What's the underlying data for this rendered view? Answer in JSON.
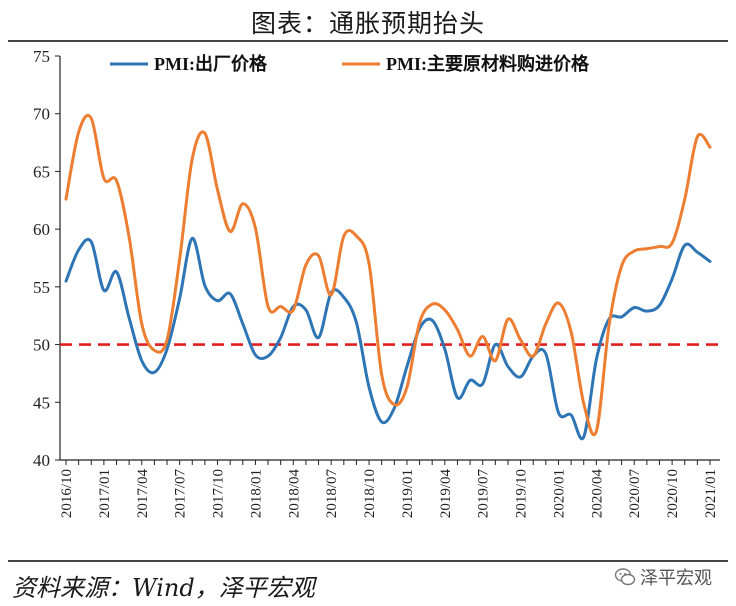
{
  "title": "图表：通胀预期抬头",
  "source": "资料来源：Wind，泽平宏观",
  "watermark": "泽平宏观",
  "chart_data": {
    "type": "line",
    "x": [
      "2016/10",
      "2016/11",
      "2016/12",
      "2017/01",
      "2017/02",
      "2017/03",
      "2017/04",
      "2017/05",
      "2017/06",
      "2017/07",
      "2017/08",
      "2017/09",
      "2017/10",
      "2017/11",
      "2017/12",
      "2018/01",
      "2018/02",
      "2018/03",
      "2018/04",
      "2018/05",
      "2018/06",
      "2018/07",
      "2018/08",
      "2018/09",
      "2018/10",
      "2018/11",
      "2018/12",
      "2019/01",
      "2019/02",
      "2019/03",
      "2019/04",
      "2019/05",
      "2019/06",
      "2019/07",
      "2019/08",
      "2019/09",
      "2019/10",
      "2019/11",
      "2019/12",
      "2020/01",
      "2020/02",
      "2020/03",
      "2020/04",
      "2020/05",
      "2020/06",
      "2020/07",
      "2020/08",
      "2020/09",
      "2020/10",
      "2020/11",
      "2020/12",
      "2021/01"
    ],
    "x_ticks": [
      "2016/10",
      "2017/01",
      "2017/04",
      "2017/07",
      "2017/10",
      "2018/01",
      "2018/04",
      "2018/07",
      "2018/10",
      "2019/01",
      "2019/04",
      "2019/07",
      "2019/10",
      "2020/01",
      "2020/04",
      "2020/07",
      "2020/10",
      "2021/01"
    ],
    "ylim": [
      40,
      75
    ],
    "y_ticks": [
      40,
      45,
      50,
      55,
      60,
      65,
      70,
      75
    ],
    "series": [
      {
        "name": "PMI:出厂价格",
        "color": "#2e75b6",
        "values": [
          55.5,
          58.2,
          58.9,
          54.7,
          56.3,
          52.3,
          48.6,
          47.6,
          49.6,
          54.0,
          59.2,
          55.1,
          53.8,
          54.4,
          51.8,
          49.1,
          49.0,
          50.6,
          53.3,
          53.0,
          50.6,
          54.5,
          54.1,
          51.9,
          46.3,
          43.3,
          44.5,
          48.1,
          51.4,
          52.1,
          49.6,
          45.4,
          46.9,
          46.6,
          50.0,
          48.1,
          47.2,
          49.0,
          49.2,
          44.1,
          43.9,
          42.0,
          48.7,
          52.2,
          52.4,
          53.2,
          52.9,
          53.4,
          55.7,
          58.6,
          58.0,
          57.2
        ]
      },
      {
        "name": "PMI:主要原材料购进价格",
        "color": "#ed7d31",
        "values": [
          62.6,
          68.4,
          69.6,
          64.4,
          64.2,
          59.3,
          51.8,
          49.5,
          50.4,
          57.4,
          66.1,
          68.3,
          63.4,
          59.8,
          62.2,
          60.1,
          53.3,
          53.3,
          53.0,
          56.9,
          57.7,
          54.3,
          59.4,
          59.4,
          57.0,
          47.4,
          44.8,
          46.3,
          51.9,
          53.5,
          53.0,
          51.3,
          49.0,
          50.7,
          48.6,
          52.2,
          50.4,
          49.0,
          51.8,
          53.6,
          51.1,
          44.9,
          42.5,
          51.6,
          56.8,
          58.1,
          58.3,
          58.5,
          58.8,
          62.6,
          68.0,
          67.1
        ]
      }
    ],
    "reference_line": {
      "value": 50,
      "style": "dashed",
      "color": "#e02020"
    },
    "legend_position": "top"
  }
}
